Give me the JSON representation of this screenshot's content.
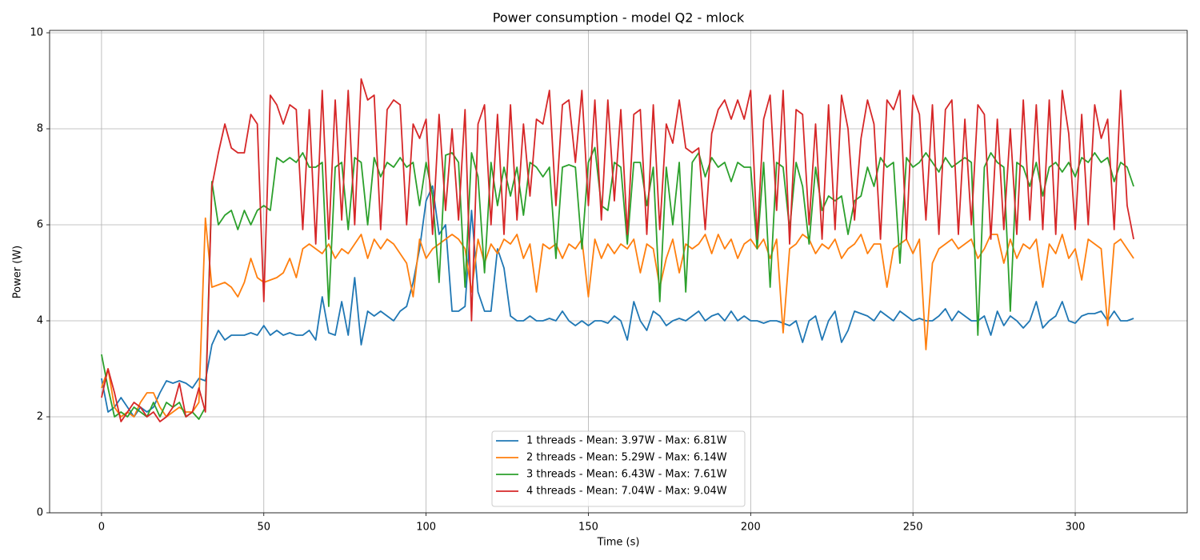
{
  "chart_data": {
    "type": "line",
    "title": "Power consumption - model Q2 - mlock",
    "x_label": "Time (s)",
    "y_label": "Power (W)",
    "xlim": [
      -16,
      334.5
    ],
    "ylim": [
      0,
      10.05
    ],
    "xticks": [
      0,
      50,
      100,
      150,
      200,
      250,
      300
    ],
    "yticks": [
      0,
      2,
      4,
      6,
      8,
      10
    ],
    "grid": true,
    "legend": "lower center",
    "x": [
      0,
      2,
      4,
      6,
      8,
      10,
      12,
      14,
      16,
      18,
      20,
      22,
      24,
      26,
      28,
      30,
      32,
      34,
      36,
      38,
      40,
      42,
      44,
      46,
      48,
      50,
      52,
      54,
      56,
      58,
      60,
      62,
      64,
      66,
      68,
      70,
      72,
      74,
      76,
      78,
      80,
      82,
      84,
      86,
      88,
      90,
      92,
      94,
      96,
      98,
      100,
      102,
      104,
      106,
      108,
      110,
      112,
      114,
      116,
      118,
      120,
      122,
      124,
      126,
      128,
      130,
      132,
      134,
      136,
      138,
      140,
      142,
      144,
      146,
      148,
      150,
      152,
      154,
      156,
      158,
      160,
      162,
      164,
      166,
      168,
      170,
      172,
      174,
      176,
      178,
      180,
      182,
      184,
      186,
      188,
      190,
      192,
      194,
      196,
      198,
      200,
      202,
      204,
      206,
      208,
      210,
      212,
      214,
      216,
      218,
      220,
      222,
      224,
      226,
      228,
      230,
      232,
      234,
      236,
      238,
      240,
      242,
      244,
      246,
      248,
      250,
      252,
      254,
      256,
      258,
      260,
      262,
      264,
      266,
      268,
      270,
      272,
      274,
      276,
      278,
      280,
      282,
      284,
      286,
      288,
      290,
      292,
      294,
      296,
      298,
      300,
      302,
      304,
      306,
      308,
      310,
      312,
      314,
      316,
      318
    ],
    "series": [
      {
        "name": "1 threads - Mean: 3.97W - Max: 6.81W",
        "color": "#1f77b4",
        "values": [
          2.8,
          2.1,
          2.2,
          2.4,
          2.2,
          2.0,
          2.2,
          2.1,
          2.2,
          2.5,
          2.75,
          2.7,
          2.75,
          2.7,
          2.6,
          2.8,
          2.75,
          3.5,
          3.8,
          3.6,
          3.7,
          3.7,
          3.7,
          3.75,
          3.7,
          3.9,
          3.7,
          3.8,
          3.7,
          3.75,
          3.7,
          3.7,
          3.8,
          3.6,
          4.5,
          3.75,
          3.7,
          4.4,
          3.7,
          4.9,
          3.5,
          4.2,
          4.1,
          4.2,
          4.1,
          4.0,
          4.2,
          4.3,
          4.8,
          5.5,
          6.5,
          6.81,
          5.8,
          6.0,
          4.2,
          4.2,
          4.3,
          6.3,
          4.6,
          4.2,
          4.2,
          5.5,
          5.1,
          4.1,
          4.0,
          4.0,
          4.1,
          4.0,
          4.0,
          4.05,
          4.0,
          4.2,
          4.0,
          3.9,
          4.0,
          3.9,
          4.0,
          4.0,
          3.95,
          4.1,
          4.0,
          3.6,
          4.4,
          4.0,
          3.8,
          4.2,
          4.1,
          3.9,
          4.0,
          4.05,
          4.0,
          4.1,
          4.2,
          4.0,
          4.1,
          4.15,
          4.0,
          4.2,
          4.0,
          4.1,
          4.0,
          4.0,
          3.95,
          4.0,
          4.0,
          3.95,
          3.9,
          4.0,
          3.55,
          4.0,
          4.1,
          3.6,
          4.0,
          4.2,
          3.55,
          3.8,
          4.2,
          4.15,
          4.1,
          4.0,
          4.2,
          4.1,
          4.0,
          4.2,
          4.1,
          4.0,
          4.05,
          4.0,
          4.0,
          4.1,
          4.25,
          4.0,
          4.2,
          4.1,
          4.0,
          4.0,
          4.1,
          3.7,
          4.2,
          3.9,
          4.1,
          4.0,
          3.85,
          4.0,
          4.4,
          3.85,
          4.0,
          4.1,
          4.4,
          4.0,
          3.95,
          4.1,
          4.15,
          4.15,
          4.2,
          4.0,
          4.2,
          4.0,
          4.0,
          4.05
        ]
      },
      {
        "name": "2 threads - Mean: 5.29W - Max: 6.14W",
        "color": "#ff7f0e",
        "values": [
          2.6,
          3.0,
          2.2,
          2.0,
          2.1,
          2.0,
          2.3,
          2.5,
          2.5,
          2.2,
          2.0,
          2.1,
          2.2,
          2.1,
          2.1,
          2.3,
          6.14,
          4.7,
          4.75,
          4.8,
          4.7,
          4.5,
          4.8,
          5.3,
          4.9,
          4.8,
          4.85,
          4.9,
          5.0,
          5.3,
          4.9,
          5.5,
          5.6,
          5.5,
          5.4,
          5.6,
          5.3,
          5.5,
          5.4,
          5.6,
          5.8,
          5.3,
          5.7,
          5.5,
          5.7,
          5.6,
          5.4,
          5.2,
          4.5,
          5.7,
          5.3,
          5.5,
          5.6,
          5.7,
          5.8,
          5.7,
          5.5,
          4.6,
          5.7,
          5.2,
          5.6,
          5.4,
          5.7,
          5.6,
          5.8,
          5.3,
          5.6,
          4.6,
          5.6,
          5.5,
          5.6,
          5.3,
          5.6,
          5.5,
          5.7,
          4.5,
          5.7,
          5.3,
          5.6,
          5.4,
          5.6,
          5.5,
          5.7,
          5.0,
          5.6,
          5.5,
          4.7,
          5.3,
          5.7,
          5.0,
          5.6,
          5.5,
          5.6,
          5.8,
          5.4,
          5.8,
          5.5,
          5.7,
          5.3,
          5.6,
          5.7,
          5.5,
          5.7,
          5.3,
          5.7,
          3.75,
          5.5,
          5.6,
          5.8,
          5.7,
          5.4,
          5.6,
          5.5,
          5.7,
          5.3,
          5.5,
          5.6,
          5.8,
          5.4,
          5.6,
          5.6,
          4.7,
          5.5,
          5.6,
          5.7,
          5.4,
          5.7,
          3.4,
          5.2,
          5.5,
          5.6,
          5.7,
          5.5,
          5.6,
          5.7,
          5.3,
          5.5,
          5.8,
          5.8,
          5.2,
          5.7,
          5.3,
          5.6,
          5.5,
          5.7,
          4.7,
          5.6,
          5.4,
          5.8,
          5.3,
          5.5,
          4.85,
          5.7,
          5.6,
          5.5,
          3.9,
          5.6,
          5.7,
          5.5,
          5.3
        ]
      },
      {
        "name": "3 threads - Mean: 6.43W - Max: 7.61W",
        "color": "#2ca02c",
        "values": [
          3.3,
          2.6,
          2.0,
          2.1,
          2.0,
          2.2,
          2.1,
          2.0,
          2.3,
          2.0,
          2.3,
          2.2,
          2.3,
          2.0,
          2.1,
          1.95,
          2.2,
          6.9,
          6.0,
          6.2,
          6.3,
          5.9,
          6.3,
          6.0,
          6.3,
          6.4,
          6.3,
          7.4,
          7.3,
          7.4,
          7.3,
          7.5,
          7.2,
          7.2,
          7.3,
          4.3,
          7.2,
          7.3,
          5.9,
          7.4,
          7.3,
          6.0,
          7.4,
          7.0,
          7.3,
          7.2,
          7.4,
          7.2,
          7.3,
          6.4,
          7.3,
          6.6,
          4.8,
          7.45,
          7.5,
          7.3,
          4.7,
          7.5,
          7.0,
          5.0,
          7.3,
          6.4,
          7.2,
          6.6,
          7.2,
          6.2,
          7.3,
          7.2,
          7.0,
          7.2,
          5.3,
          7.2,
          7.25,
          7.2,
          5.5,
          7.3,
          7.61,
          6.4,
          6.3,
          7.3,
          7.2,
          5.6,
          7.3,
          7.3,
          6.4,
          7.2,
          4.4,
          7.2,
          6.0,
          7.3,
          4.6,
          7.3,
          7.5,
          7.0,
          7.4,
          7.2,
          7.3,
          6.9,
          7.3,
          7.2,
          7.2,
          5.5,
          7.3,
          4.7,
          7.3,
          7.2,
          5.9,
          7.3,
          6.8,
          5.6,
          7.2,
          6.3,
          6.6,
          6.5,
          6.6,
          5.8,
          6.5,
          6.6,
          7.2,
          6.8,
          7.4,
          7.2,
          7.3,
          5.2,
          7.4,
          7.2,
          7.3,
          7.5,
          7.3,
          7.1,
          7.4,
          7.2,
          7.3,
          7.4,
          7.3,
          3.7,
          7.2,
          7.5,
          7.3,
          7.2,
          4.2,
          7.3,
          7.2,
          6.8,
          7.3,
          6.6,
          7.2,
          7.3,
          7.1,
          7.3,
          7.0,
          7.4,
          7.3,
          7.5,
          7.3,
          7.4,
          6.9,
          7.3,
          7.2,
          6.8
        ]
      },
      {
        "name": "4 threads - Mean: 7.04W - Max: 9.04W",
        "color": "#d62728",
        "values": [
          2.4,
          3.0,
          2.5,
          1.9,
          2.1,
          2.3,
          2.2,
          2.0,
          2.1,
          1.9,
          2.0,
          2.2,
          2.7,
          2.0,
          2.1,
          2.6,
          2.1,
          6.8,
          7.5,
          8.1,
          7.6,
          7.5,
          7.5,
          8.3,
          8.1,
          4.4,
          8.7,
          8.5,
          8.1,
          8.5,
          8.4,
          5.9,
          8.4,
          5.6,
          8.8,
          5.7,
          8.6,
          6.1,
          8.8,
          6.0,
          9.04,
          8.6,
          8.7,
          5.9,
          8.4,
          8.6,
          8.5,
          6.0,
          8.1,
          7.8,
          8.2,
          5.8,
          8.3,
          6.3,
          8.0,
          6.1,
          8.4,
          4.0,
          8.1,
          8.5,
          6.0,
          8.3,
          5.8,
          8.5,
          6.1,
          8.1,
          6.6,
          8.2,
          8.1,
          8.8,
          6.4,
          8.5,
          8.6,
          7.3,
          8.8,
          6.4,
          8.6,
          6.1,
          8.6,
          6.5,
          8.4,
          5.8,
          8.3,
          8.4,
          5.8,
          8.5,
          5.9,
          8.1,
          7.7,
          8.6,
          7.6,
          7.5,
          7.6,
          5.9,
          7.9,
          8.4,
          8.6,
          8.2,
          8.6,
          8.2,
          8.8,
          5.7,
          8.2,
          8.7,
          6.3,
          8.8,
          5.6,
          8.4,
          8.3,
          6.0,
          8.1,
          5.7,
          8.5,
          5.9,
          8.7,
          8.0,
          6.1,
          7.8,
          8.6,
          8.1,
          5.7,
          8.6,
          8.4,
          8.8,
          5.7,
          8.7,
          8.3,
          6.1,
          8.5,
          5.8,
          8.4,
          8.6,
          5.8,
          8.2,
          6.0,
          8.5,
          8.3,
          5.7,
          8.2,
          5.9,
          8.0,
          5.8,
          8.6,
          6.1,
          8.5,
          5.9,
          8.6,
          5.8,
          8.8,
          7.9,
          5.9,
          8.3,
          6.0,
          8.5,
          7.8,
          8.2,
          5.9,
          8.8,
          6.4,
          5.7
        ]
      }
    ]
  }
}
